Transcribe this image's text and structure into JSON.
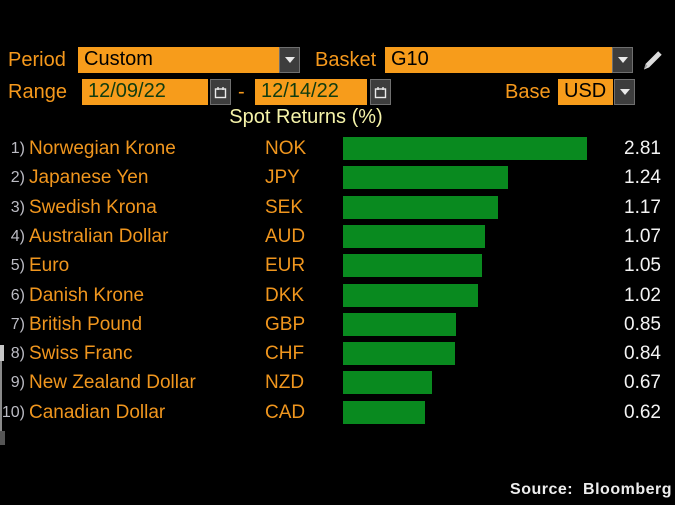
{
  "controls": {
    "period": {
      "label": "Period",
      "value": "Custom"
    },
    "basket": {
      "label": "Basket",
      "value": "G10"
    },
    "range": {
      "label": "Range",
      "start": "12/09/22",
      "separator": "-",
      "end": "12/14/22"
    },
    "base": {
      "label": "Base",
      "value": "USD"
    }
  },
  "chart_data": {
    "type": "bar",
    "orientation": "horizontal",
    "title": "Spot Returns (%)",
    "categories": [
      "Norwegian Krone",
      "Japanese Yen",
      "Swedish Krona",
      "Australian Dollar",
      "Euro",
      "Danish Krone",
      "British Pound",
      "Swiss Franc",
      "New Zealand Dollar",
      "Canadian Dollar"
    ],
    "codes": [
      "NOK",
      "JPY",
      "SEK",
      "AUD",
      "EUR",
      "DKK",
      "GBP",
      "CHF",
      "NZD",
      "CAD"
    ],
    "values": [
      2.81,
      1.24,
      1.17,
      1.07,
      1.05,
      1.02,
      0.85,
      0.84,
      0.67,
      0.62
    ],
    "row_numbers": [
      "1)",
      "2)",
      "3)",
      "4)",
      "5)",
      "6)",
      "7)",
      "8)",
      "9)",
      "10)"
    ],
    "xlim": [
      0,
      1.9
    ],
    "layout_note": "longest bar (NOK) is clipped at the right edge of the plot area",
    "bar_color": "#098a1f",
    "grid": false,
    "legend": "none"
  },
  "source_note": "Source: Bloomberg",
  "colors": {
    "background": "#000000",
    "amber": "#f79c1b",
    "bar_green": "#098a1f",
    "title_yellow": "#f5f3a9",
    "value_white": "#f4f4f4",
    "number_gray": "#bcbcc4"
  }
}
